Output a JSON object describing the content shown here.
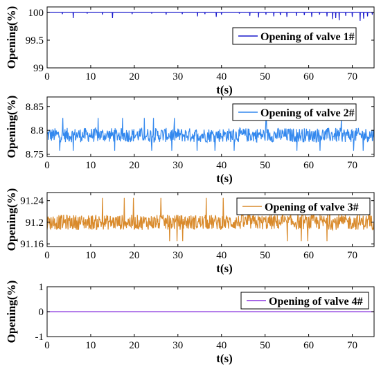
{
  "chart_data": [
    {
      "type": "line",
      "xlabel": "t(s)",
      "ylabel": "Opening(%)",
      "xlim": [
        0,
        75
      ],
      "ylim": [
        99,
        100.1
      ],
      "xticks": [
        0,
        10,
        20,
        30,
        40,
        50,
        60,
        70
      ],
      "yticks": [
        99,
        99.5,
        100
      ],
      "ytick_labels": [
        "99",
        "99.5",
        "100"
      ],
      "grid": false,
      "legend_position": "right",
      "series": [
        {
          "name": "Opening of valve 1#",
          "color": "#1a1acc",
          "baseline": 100,
          "x": [
            0.5,
            3.5,
            6.0,
            9.2,
            12.7,
            15.0,
            19.5,
            24.0,
            27.3,
            31.0,
            34.5,
            36.2,
            38.8,
            40.0,
            44.1,
            46.5,
            48.5,
            50.2,
            52.0,
            53.5,
            55.0,
            57.2,
            59.0,
            60.7,
            62.5,
            64.2,
            65.5,
            66.2,
            67.0,
            68.5,
            70.0,
            71.8,
            72.6,
            73.5,
            74.6
          ],
          "y": [
            100,
            99.97,
            99.9,
            99.98,
            99.96,
            99.9,
            99.97,
            99.98,
            99.96,
            99.97,
            99.93,
            99.97,
            99.92,
            99.96,
            99.98,
            99.94,
            99.91,
            99.96,
            99.93,
            99.95,
            99.92,
            99.94,
            99.95,
            99.92,
            99.96,
            99.93,
            99.88,
            99.9,
            99.86,
            99.94,
            99.92,
            99.85,
            99.89,
            99.93,
            99.96
          ]
        }
      ]
    },
    {
      "type": "line",
      "xlabel": "t(s)",
      "ylabel": "Opening(%)",
      "xlim": [
        0,
        75
      ],
      "ylim": [
        8.745,
        8.87
      ],
      "xticks": [
        0,
        10,
        20,
        30,
        40,
        50,
        60,
        70
      ],
      "yticks": [
        8.75,
        8.8,
        8.85
      ],
      "ytick_labels": [
        "8.75",
        "8.8",
        "8.85"
      ],
      "grid": false,
      "legend_position": "top-right",
      "series": [
        {
          "name": "Opening of valve 2#",
          "color": "#3388ee",
          "mean": 8.79,
          "amplitude": 0.015,
          "min": 8.757,
          "max": 8.826
        }
      ]
    },
    {
      "type": "line",
      "xlabel": "t(s)",
      "ylabel": "Opening(%)",
      "xlim": [
        0,
        75
      ],
      "ylim": [
        91.155,
        91.255
      ],
      "xticks": [
        0,
        10,
        20,
        30,
        40,
        50,
        60,
        70
      ],
      "yticks": [
        91.16,
        91.2,
        91.24
      ],
      "ytick_labels": [
        "91.16",
        "91.2",
        "91.24"
      ],
      "grid": false,
      "legend_position": "top-right",
      "series": [
        {
          "name": "Opening of valve 3#",
          "color": "#d98a2b",
          "mean": 91.2,
          "amplitude": 0.014,
          "min": 91.165,
          "max": 91.245
        }
      ]
    },
    {
      "type": "line",
      "xlabel": "t(s)",
      "ylabel": "Opening(%)",
      "xlim": [
        0,
        75
      ],
      "ylim": [
        -1,
        1
      ],
      "xticks": [
        0,
        10,
        20,
        30,
        40,
        50,
        60,
        70
      ],
      "yticks": [
        -1,
        0,
        1
      ],
      "ytick_labels": [
        "-1",
        "0",
        "1"
      ],
      "grid": false,
      "legend_position": "top-right",
      "series": [
        {
          "name": "Opening of valve 4#",
          "color": "#8833dd",
          "x": [
            0,
            75
          ],
          "y": [
            0,
            0
          ]
        }
      ]
    }
  ]
}
